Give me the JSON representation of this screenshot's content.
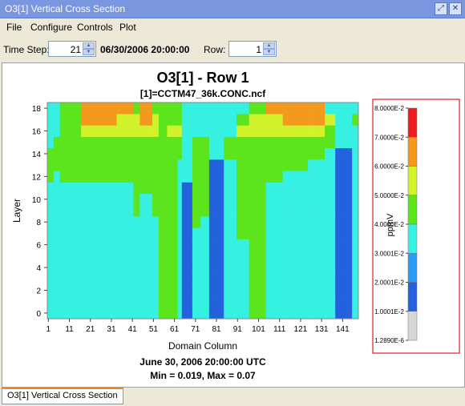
{
  "window": {
    "title": "O3[1] Vertical Cross Section"
  },
  "menu": {
    "items": [
      "File",
      "Configure",
      "Controls",
      "Plot"
    ]
  },
  "toolbar": {
    "timestep_label": "Time Step:",
    "timestep_value": "21",
    "datetime": "06/30/2006 20:00:00",
    "row_label": "Row:",
    "row_value": "1"
  },
  "plot": {
    "title": "O3[1] - Row 1",
    "subtitle": "[1]=CCTM47_36k.CONC.ncf",
    "date_line": "June 30, 2006 20:00:00 UTC",
    "stats_line": "Min = 0.019, Max = 0.07"
  },
  "status": {
    "tab_label": "O3[1] Vertical Cross Section"
  },
  "chart_data": {
    "type": "heatmap",
    "title": "O3[1] - Row 1",
    "subtitle": "[1]=CCTM47_36k.CONC.ncf",
    "xlabel": "Domain Column",
    "ylabel": "Layer",
    "x_ticks": [
      "1",
      "11",
      "21",
      "31",
      "41",
      "51",
      "61",
      "71",
      "81",
      "91",
      "101",
      "111",
      "121",
      "131",
      "141"
    ],
    "y_ticks": [
      "0",
      "2",
      "4",
      "6",
      "8",
      "10",
      "12",
      "14",
      "16",
      "18"
    ],
    "xlim": [
      1,
      148
    ],
    "ylim": [
      0,
      18
    ],
    "legend": {
      "unit": "ppmV",
      "labels": [
        "8.0000E-2",
        "7.0000E-2",
        "6.0000E-2",
        "5.0000E-2",
        "4.0000E-2",
        "3.0001E-2",
        "2.0001E-2",
        "1.0001E-2",
        "1.2890E-6"
      ],
      "colors_top_to_bottom": [
        "#ee1c1c",
        "#f39a1e",
        "#d2f22c",
        "#5ce41c",
        "#36f1e1",
        "#2a9bf5",
        "#2361dd",
        "#d6d6d6"
      ]
    },
    "colors": {
      "orange": "#f39a1e",
      "yellow": "#d2f22c",
      "green": "#5ce41c",
      "cyan": "#36f1e1",
      "lightblue": "#2a9bf5",
      "blue": "#2361dd"
    },
    "column_profiles": [
      {
        "from": 1,
        "to": 3,
        "layers": [
          "cyan",
          "cyan",
          "cyan",
          "cyan",
          "cyan",
          "cyan",
          "cyan",
          "cyan",
          "cyan",
          "cyan",
          "cyan",
          "cyan",
          "green",
          "green",
          "green",
          "cyan",
          "cyan",
          "cyan",
          "cyan"
        ]
      },
      {
        "from": 4,
        "to": 6,
        "layers": [
          "cyan",
          "cyan",
          "cyan",
          "cyan",
          "cyan",
          "cyan",
          "cyan",
          "cyan",
          "cyan",
          "cyan",
          "cyan",
          "cyan",
          "cyan",
          "green",
          "green",
          "green",
          "cyan",
          "cyan",
          "cyan"
        ]
      },
      {
        "from": 7,
        "to": 10,
        "layers": [
          "cyan",
          "cyan",
          "cyan",
          "cyan",
          "cyan",
          "cyan",
          "cyan",
          "cyan",
          "cyan",
          "cyan",
          "cyan",
          "cyan",
          "green",
          "green",
          "green",
          "green",
          "green",
          "green",
          "green"
        ]
      },
      {
        "from": 11,
        "to": 16,
        "layers": [
          "cyan",
          "cyan",
          "cyan",
          "cyan",
          "cyan",
          "cyan",
          "cyan",
          "cyan",
          "cyan",
          "cyan",
          "cyan",
          "cyan",
          "green",
          "green",
          "green",
          "green",
          "green",
          "green",
          "green"
        ]
      },
      {
        "from": 17,
        "to": 24,
        "layers": [
          "cyan",
          "cyan",
          "cyan",
          "cyan",
          "cyan",
          "cyan",
          "cyan",
          "cyan",
          "cyan",
          "cyan",
          "cyan",
          "cyan",
          "green",
          "green",
          "green",
          "green",
          "yellow",
          "orange",
          "orange"
        ]
      },
      {
        "from": 25,
        "to": 33,
        "layers": [
          "cyan",
          "cyan",
          "cyan",
          "cyan",
          "cyan",
          "cyan",
          "cyan",
          "cyan",
          "cyan",
          "cyan",
          "cyan",
          "cyan",
          "green",
          "green",
          "green",
          "green",
          "yellow",
          "orange",
          "orange"
        ]
      },
      {
        "from": 34,
        "to": 41,
        "layers": [
          "cyan",
          "cyan",
          "cyan",
          "cyan",
          "cyan",
          "cyan",
          "cyan",
          "cyan",
          "cyan",
          "cyan",
          "cyan",
          "cyan",
          "green",
          "green",
          "green",
          "green",
          "yellow",
          "yellow",
          "orange"
        ]
      },
      {
        "from": 42,
        "to": 44,
        "layers": [
          "cyan",
          "cyan",
          "cyan",
          "cyan",
          "cyan",
          "cyan",
          "cyan",
          "cyan",
          "cyan",
          "green",
          "green",
          "green",
          "green",
          "green",
          "green",
          "green",
          "yellow",
          "yellow",
          "green"
        ]
      },
      {
        "from": 45,
        "to": 50,
        "layers": [
          "cyan",
          "cyan",
          "cyan",
          "cyan",
          "cyan",
          "cyan",
          "cyan",
          "cyan",
          "cyan",
          "cyan",
          "cyan",
          "green",
          "green",
          "green",
          "green",
          "green",
          "yellow",
          "orange",
          "orange"
        ]
      },
      {
        "from": 51,
        "to": 53,
        "layers": [
          "cyan",
          "cyan",
          "cyan",
          "cyan",
          "cyan",
          "cyan",
          "cyan",
          "cyan",
          "cyan",
          "green",
          "green",
          "green",
          "green",
          "green",
          "green",
          "green",
          "yellow",
          "yellow",
          "green"
        ]
      },
      {
        "from": 54,
        "to": 57,
        "layers": [
          "green",
          "green",
          "green",
          "green",
          "green",
          "green",
          "green",
          "green",
          "green",
          "green",
          "green",
          "green",
          "green",
          "green",
          "green",
          "green",
          "green",
          "green",
          "green"
        ]
      },
      {
        "from": 58,
        "to": 62,
        "layers": [
          "green",
          "green",
          "green",
          "green",
          "green",
          "green",
          "green",
          "green",
          "green",
          "green",
          "green",
          "green",
          "green",
          "green",
          "green",
          "green",
          "yellow",
          "green",
          "green"
        ]
      },
      {
        "from": 63,
        "to": 64,
        "layers": [
          "cyan",
          "cyan",
          "cyan",
          "cyan",
          "cyan",
          "cyan",
          "cyan",
          "cyan",
          "cyan",
          "cyan",
          "cyan",
          "cyan",
          "cyan",
          "cyan",
          "green",
          "green",
          "yellow",
          "green",
          "green"
        ]
      },
      {
        "from": 65,
        "to": 69,
        "layers": [
          "blue",
          "blue",
          "blue",
          "blue",
          "blue",
          "blue",
          "blue",
          "blue",
          "blue",
          "blue",
          "blue",
          "blue",
          "cyan",
          "cyan",
          "cyan",
          "cyan",
          "cyan",
          "cyan",
          "cyan"
        ]
      },
      {
        "from": 70,
        "to": 73,
        "layers": [
          "cyan",
          "cyan",
          "cyan",
          "cyan",
          "cyan",
          "cyan",
          "cyan",
          "cyan",
          "green",
          "green",
          "green",
          "green",
          "green",
          "green",
          "green",
          "green",
          "cyan",
          "cyan",
          "cyan"
        ]
      },
      {
        "from": 74,
        "to": 77,
        "layers": [
          "cyan",
          "cyan",
          "cyan",
          "cyan",
          "cyan",
          "cyan",
          "cyan",
          "cyan",
          "cyan",
          "green",
          "green",
          "green",
          "green",
          "green",
          "green",
          "green",
          "cyan",
          "cyan",
          "cyan"
        ]
      },
      {
        "from": 78,
        "to": 84,
        "layers": [
          "blue",
          "blue",
          "blue",
          "blue",
          "blue",
          "blue",
          "blue",
          "blue",
          "blue",
          "blue",
          "blue",
          "blue",
          "blue",
          "blue",
          "cyan",
          "cyan",
          "cyan",
          "cyan",
          "cyan"
        ]
      },
      {
        "from": 85,
        "to": 90,
        "layers": [
          "cyan",
          "cyan",
          "cyan",
          "cyan",
          "cyan",
          "cyan",
          "cyan",
          "cyan",
          "cyan",
          "cyan",
          "cyan",
          "cyan",
          "cyan",
          "cyan",
          "green",
          "green",
          "cyan",
          "cyan",
          "cyan"
        ]
      },
      {
        "from": 91,
        "to": 96,
        "layers": [
          "cyan",
          "cyan",
          "cyan",
          "cyan",
          "cyan",
          "cyan",
          "cyan",
          "green",
          "green",
          "green",
          "green",
          "green",
          "green",
          "green",
          "green",
          "green",
          "yellow",
          "green",
          "cyan"
        ]
      },
      {
        "from": 97,
        "to": 104,
        "layers": [
          "green",
          "green",
          "green",
          "green",
          "green",
          "green",
          "green",
          "green",
          "green",
          "green",
          "green",
          "green",
          "green",
          "green",
          "green",
          "green",
          "yellow",
          "yellow",
          "green"
        ]
      },
      {
        "from": 105,
        "to": 112,
        "layers": [
          "cyan",
          "cyan",
          "cyan",
          "cyan",
          "cyan",
          "cyan",
          "cyan",
          "cyan",
          "cyan",
          "cyan",
          "cyan",
          "cyan",
          "green",
          "green",
          "green",
          "green",
          "yellow",
          "yellow",
          "orange"
        ]
      },
      {
        "from": 113,
        "to": 124,
        "layers": [
          "cyan",
          "cyan",
          "cyan",
          "cyan",
          "cyan",
          "cyan",
          "cyan",
          "cyan",
          "cyan",
          "cyan",
          "cyan",
          "cyan",
          "cyan",
          "green",
          "green",
          "green",
          "yellow",
          "orange",
          "orange"
        ]
      },
      {
        "from": 125,
        "to": 132,
        "layers": [
          "cyan",
          "cyan",
          "cyan",
          "cyan",
          "cyan",
          "cyan",
          "cyan",
          "cyan",
          "cyan",
          "cyan",
          "cyan",
          "cyan",
          "cyan",
          "cyan",
          "green",
          "green",
          "yellow",
          "orange",
          "orange"
        ]
      },
      {
        "from": 133,
        "to": 137,
        "layers": [
          "cyan",
          "cyan",
          "cyan",
          "cyan",
          "cyan",
          "cyan",
          "cyan",
          "cyan",
          "cyan",
          "cyan",
          "cyan",
          "cyan",
          "cyan",
          "cyan",
          "cyan",
          "green",
          "green",
          "yellow",
          "cyan"
        ]
      },
      {
        "from": 138,
        "to": 145,
        "layers": [
          "blue",
          "blue",
          "blue",
          "blue",
          "blue",
          "blue",
          "blue",
          "blue",
          "blue",
          "blue",
          "blue",
          "blue",
          "blue",
          "blue",
          "blue",
          "cyan",
          "cyan",
          "cyan",
          "cyan"
        ]
      },
      {
        "from": 146,
        "to": 148,
        "layers": [
          "cyan",
          "cyan",
          "cyan",
          "cyan",
          "cyan",
          "cyan",
          "cyan",
          "cyan",
          "cyan",
          "cyan",
          "cyan",
          "cyan",
          "cyan",
          "cyan",
          "cyan",
          "cyan",
          "cyan",
          "green",
          "cyan"
        ]
      }
    ]
  }
}
